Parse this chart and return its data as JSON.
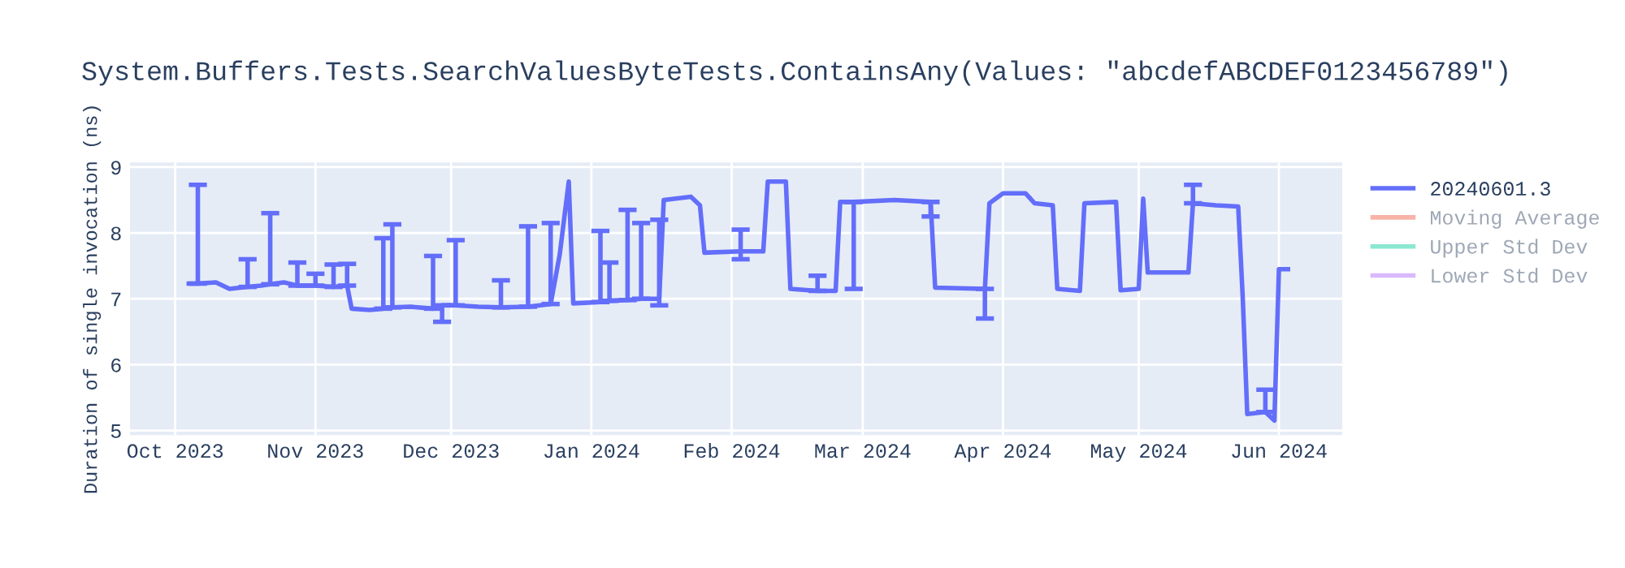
{
  "chart_data": {
    "type": "line",
    "title": "System.Buffers.Tests.SearchValuesByteTests.ContainsAny(Values: \"abcdefABCDEF0123456789\")",
    "ylabel": "Duration of single invocation (ns)",
    "xlim": [
      "2023-09-21",
      "2024-06-15"
    ],
    "ylim": [
      4.93,
      9.07
    ],
    "yticks": [
      5,
      6,
      7,
      8,
      9
    ],
    "xticks": [
      {
        "value": "2023-10-01",
        "label": "Oct 2023"
      },
      {
        "value": "2023-11-01",
        "label": "Nov 2023"
      },
      {
        "value": "2023-12-01",
        "label": "Dec 2023"
      },
      {
        "value": "2024-01-01",
        "label": "Jan 2024"
      },
      {
        "value": "2024-02-01",
        "label": "Feb 2024"
      },
      {
        "value": "2024-03-01",
        "label": "Mar 2024"
      },
      {
        "value": "2024-04-01",
        "label": "Apr 2024"
      },
      {
        "value": "2024-05-01",
        "label": "May 2024"
      },
      {
        "value": "2024-06-01",
        "label": "Jun 2024"
      }
    ],
    "grid": true,
    "legend": "right",
    "marker": "none",
    "line_style": "solid",
    "series": [
      {
        "name": "20240601.3",
        "color": "#636efa",
        "x": [
          "2023-10-04",
          "2023-10-06",
          "2023-10-10",
          "2023-10-13",
          "2023-10-17",
          "2023-10-20",
          "2023-10-22",
          "2023-10-25",
          "2023-10-28",
          "2023-11-01",
          "2023-11-05",
          "2023-11-08",
          "2023-11-09",
          "2023-11-13",
          "2023-11-16",
          "2023-11-18",
          "2023-11-22",
          "2023-11-27",
          "2023-11-29",
          "2023-12-02",
          "2023-12-07",
          "2023-12-12",
          "2023-12-18",
          "2023-12-23",
          "2023-12-25",
          "2023-12-27",
          "2023-12-28",
          "2024-01-03",
          "2024-01-05",
          "2024-01-09",
          "2024-01-12",
          "2024-01-16",
          "2024-01-17",
          "2024-01-23",
          "2024-01-25",
          "2024-01-26",
          "2024-02-03",
          "2024-02-08",
          "2024-02-09",
          "2024-02-13",
          "2024-02-14",
          "2024-02-20",
          "2024-02-24",
          "2024-02-25",
          "2024-02-28",
          "2024-03-08",
          "2024-03-16",
          "2024-03-17",
          "2024-03-28",
          "2024-03-29",
          "2024-04-01",
          "2024-04-06",
          "2024-04-08",
          "2024-04-12",
          "2024-04-13",
          "2024-04-18",
          "2024-04-19",
          "2024-04-26",
          "2024-04-27",
          "2024-05-01",
          "2024-05-02",
          "2024-05-03",
          "2024-05-12",
          "2024-05-13",
          "2024-05-18",
          "2024-05-23",
          "2024-05-24",
          "2024-05-25",
          "2024-05-29",
          "2024-05-31",
          "2024-06-01",
          "2024-06-03"
        ],
        "values": [
          7.23,
          7.23,
          7.25,
          7.15,
          7.18,
          7.2,
          7.22,
          7.25,
          7.2,
          7.2,
          7.18,
          7.2,
          6.85,
          6.83,
          6.85,
          6.87,
          6.88,
          6.85,
          6.9,
          6.9,
          6.88,
          6.87,
          6.88,
          6.92,
          7.67,
          8.78,
          6.93,
          6.95,
          6.97,
          6.98,
          7.0,
          7.0,
          8.5,
          8.55,
          8.42,
          7.7,
          7.72,
          7.72,
          8.78,
          8.78,
          7.15,
          7.12,
          7.12,
          8.47,
          8.47,
          8.5,
          8.47,
          7.17,
          7.15,
          8.45,
          8.6,
          8.6,
          8.45,
          8.42,
          7.15,
          7.12,
          8.45,
          8.47,
          7.13,
          7.15,
          8.52,
          7.4,
          7.4,
          8.45,
          8.42,
          8.4,
          7.02,
          5.25,
          5.28,
          5.15,
          7.45,
          7.45
        ],
        "errors": [
          null,
          [
            7.23,
            8.73
          ],
          null,
          null,
          [
            7.18,
            7.6
          ],
          null,
          [
            7.22,
            8.3
          ],
          null,
          [
            7.2,
            7.55
          ],
          [
            7.2,
            7.38
          ],
          [
            7.18,
            7.52
          ],
          [
            7.2,
            7.53
          ],
          null,
          null,
          [
            6.85,
            7.92
          ],
          [
            6.87,
            8.13
          ],
          null,
          [
            6.85,
            7.65
          ],
          [
            6.65,
            6.9
          ],
          [
            6.9,
            7.89
          ],
          null,
          [
            6.87,
            7.28
          ],
          [
            6.88,
            8.1
          ],
          [
            6.92,
            8.15
          ],
          null,
          null,
          null,
          [
            6.95,
            8.03
          ],
          [
            6.97,
            7.55
          ],
          [
            6.98,
            8.35
          ],
          [
            7.0,
            8.15
          ],
          [
            6.9,
            8.2
          ],
          null,
          null,
          null,
          null,
          [
            7.6,
            8.05
          ],
          null,
          null,
          null,
          null,
          [
            7.12,
            7.35
          ],
          null,
          null,
          [
            7.15,
            8.47
          ],
          null,
          [
            8.25,
            8.47
          ],
          null,
          [
            6.7,
            7.15
          ],
          null,
          null,
          null,
          null,
          null,
          null,
          null,
          null,
          null,
          null,
          null,
          null,
          null,
          null,
          [
            8.45,
            8.73
          ],
          null,
          null,
          null,
          null,
          [
            5.28,
            5.62
          ],
          null,
          null,
          null
        ]
      },
      {
        "name": "Moving Average",
        "color": "#ef553b"
      },
      {
        "name": "Upper Std Dev",
        "color": "#00cc96"
      },
      {
        "name": "Lower Std Dev",
        "color": "#ab63fa"
      }
    ]
  }
}
